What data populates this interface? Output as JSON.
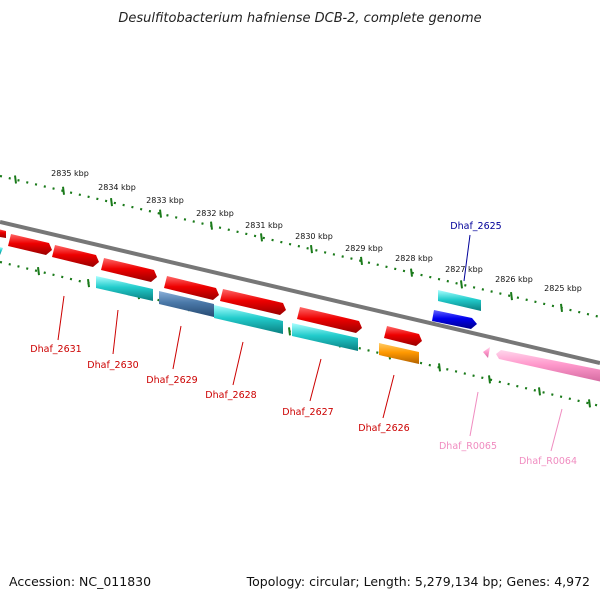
{
  "title": "Desulfitobacterium hafniense DCB-2, complete genome",
  "footer": {
    "accession": "Accession: NC_011830",
    "summary": "Topology: circular; Length: 5,279,134 bp; Genes: 4,972"
  },
  "colors": {
    "backbone": "#808080",
    "tick": "#1a7a1a",
    "label_red": "#cc0000",
    "label_blue": "#000099",
    "label_pink": "#f08cc0"
  },
  "scale_labels": [
    "2835 kbp",
    "2834 kbp",
    "2833 kbp",
    "2832 kbp",
    "2831 kbp",
    "2830 kbp",
    "2829 kbp",
    "2828 kbp",
    "2827 kbp",
    "2826 kbp",
    "2825 kbp"
  ],
  "gene_labels": [
    {
      "text": "Dhaf_2631",
      "color": "red"
    },
    {
      "text": "Dhaf_2630",
      "color": "red"
    },
    {
      "text": "Dhaf_2629",
      "color": "red"
    },
    {
      "text": "Dhaf_2628",
      "color": "red"
    },
    {
      "text": "Dhaf_2627",
      "color": "red"
    },
    {
      "text": "Dhaf_2626",
      "color": "red"
    },
    {
      "text": "Dhaf_2625",
      "color": "blue"
    },
    {
      "text": "Dhaf_R0065",
      "color": "pink"
    },
    {
      "text": "Dhaf_R0064",
      "color": "pink"
    }
  ]
}
